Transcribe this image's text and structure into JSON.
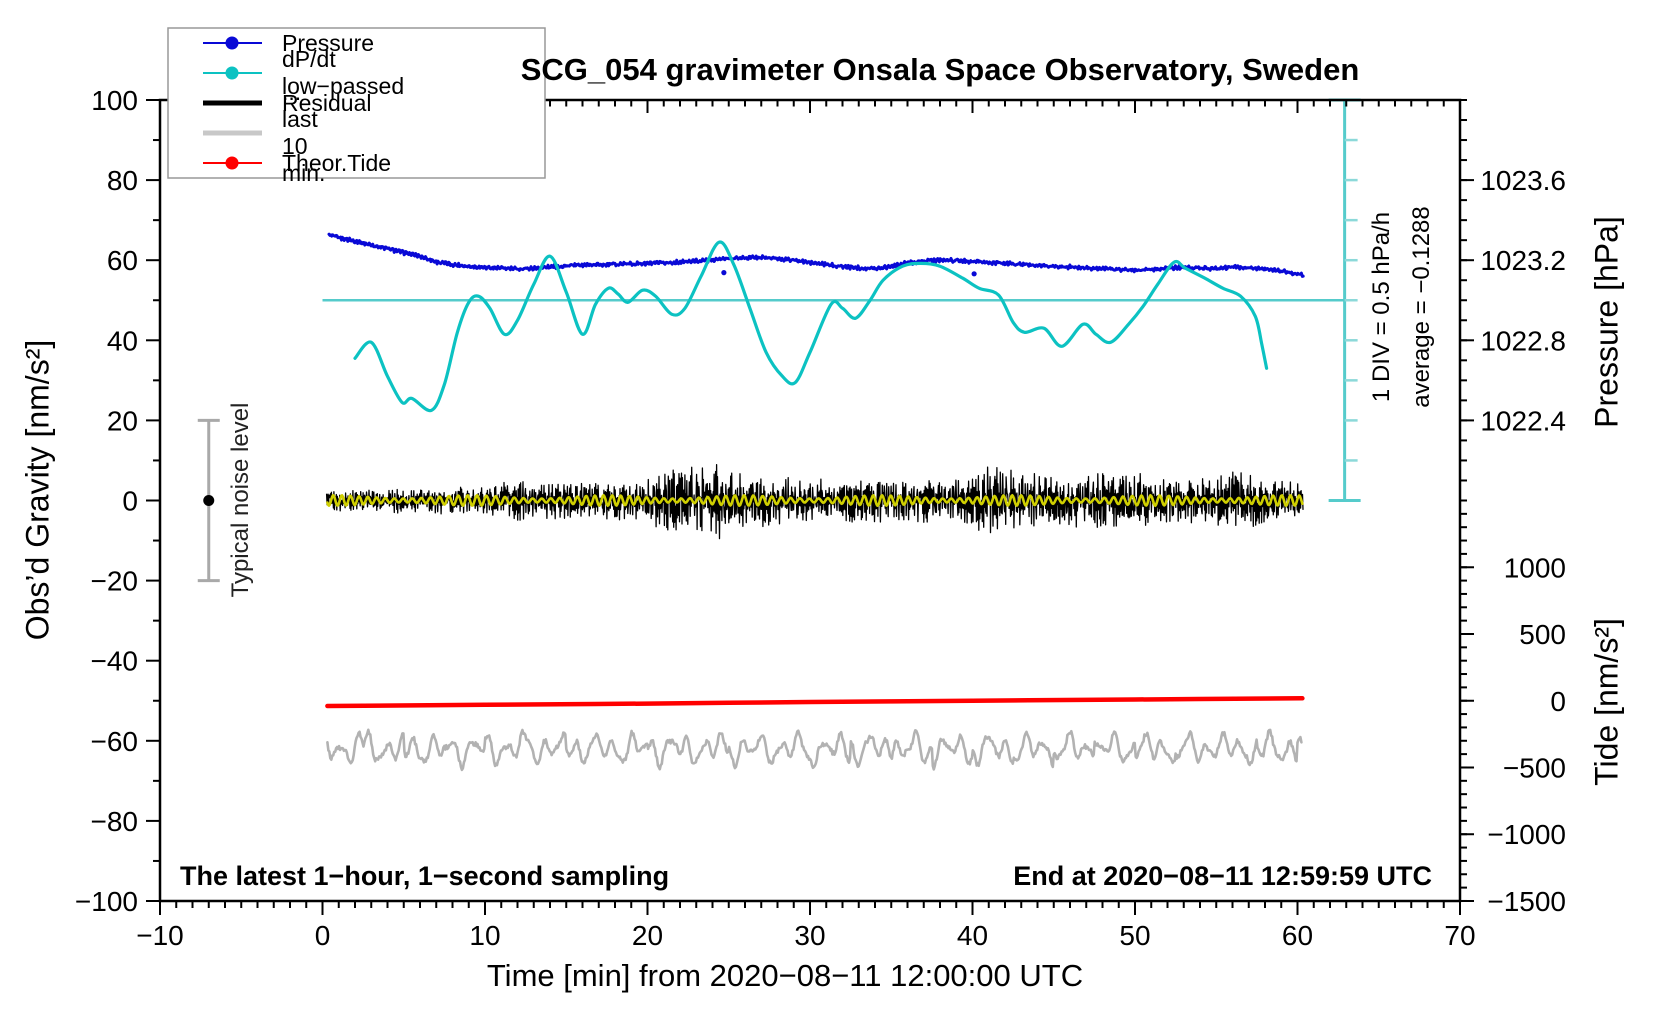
{
  "title": "SCG_054 gravimeter Onsala Space Observatory, Sweden",
  "legend": {
    "items": [
      {
        "label": "Pressure",
        "color": "#0909d6",
        "style": "thin-line-with-dot"
      },
      {
        "label": "dP/dt low−passed",
        "color": "#0cc2c2",
        "style": "thin-line-with-dot"
      },
      {
        "label": "Residual",
        "color": "#000000",
        "style": "thick-line"
      },
      {
        "label": "... last 10 min.",
        "color": "#c8c8c8",
        "style": "thick-line"
      },
      {
        "label": "Theor.Tide",
        "color": "#ff0000",
        "style": "thin-line-with-dot"
      }
    ]
  },
  "axes": {
    "x": {
      "label": "Time [min] from 2020−08−11 12:00:00 UTC",
      "min": -10,
      "max": 70,
      "major_tick_values": [
        -10,
        0,
        10,
        20,
        30,
        40,
        50,
        60,
        70
      ],
      "minor_step": 1
    },
    "y_left": {
      "label": "Obs’d Gravity [nm/s²]",
      "min": -100,
      "max": 100,
      "major_tick_values": [
        100,
        80,
        60,
        40,
        20,
        0,
        -20,
        -40,
        -60,
        -80,
        -100
      ],
      "minor_step": 10
    },
    "y_right_pressure": {
      "label": "Pressure [hPa]",
      "ticks": [
        {
          "label": "1023.6",
          "g": 80
        },
        {
          "label": "1023.2",
          "g": 60
        },
        {
          "label": "1022.8",
          "g": 40
        },
        {
          "label": "1022.4",
          "g": 20
        }
      ],
      "minor_step_g": 5,
      "mapping": "hPa = 1022.0 + 0.02 × left-axis value"
    },
    "y_right_tide": {
      "label": "Tide [nm/s²]",
      "ticks": [
        {
          "label": "1000",
          "g": -16.67
        },
        {
          "label": "500",
          "g": -33.33
        },
        {
          "label": "0",
          "g": -50
        },
        {
          "label": "−500",
          "g": -66.67
        },
        {
          "label": "−1000",
          "g": -83.33
        },
        {
          "label": "−1500",
          "g": -100
        }
      ],
      "minor_step_g": 3.333,
      "mapping": "tide nm/s² = 30 × (left-axis value + 50)"
    }
  },
  "annotations": {
    "scalebar_caption": "1 DIV = 0.5 hPa/h",
    "average_caption": "average = −0.1288",
    "noise_caption": "Typical noise level",
    "bottom_left": "The latest 1−hour, 1−second sampling",
    "bottom_right": "End at 2020−08−11 12:59:59 UTC"
  },
  "chart_data": {
    "type": "line",
    "title": "SCG_054 gravimeter Onsala Space Observatory, Sweden",
    "xlabel": "Time [min] from 2020−08−11 12:00:00 UTC",
    "ylabel": "Obs’d Gravity [nm/s²]",
    "xlim": [
      -10,
      70
    ],
    "ylim": [
      -100,
      100
    ],
    "grid": false,
    "legend_position": "top-left",
    "series": [
      {
        "name": "Pressure",
        "color": "#0909d6",
        "axis": "right-pressure",
        "unit_note": "hPa = 1022.0 + 0.02 × g",
        "points_t_g": [
          [
            0.4,
            66.3
          ],
          [
            1,
            65.6
          ],
          [
            2,
            64.8
          ],
          [
            3,
            63.8
          ],
          [
            4,
            62.9
          ],
          [
            5,
            61.9
          ],
          [
            6,
            61.0
          ],
          [
            7,
            59.6
          ],
          [
            8,
            58.9
          ],
          [
            9,
            58.5
          ],
          [
            10,
            58.2
          ],
          [
            11,
            58.0
          ],
          [
            12,
            57.8
          ],
          [
            13,
            58.0
          ],
          [
            14,
            58.3
          ],
          [
            15,
            58.6
          ],
          [
            16,
            58.8
          ],
          [
            17,
            58.9
          ],
          [
            18,
            59.0
          ],
          [
            19,
            59.1
          ],
          [
            20,
            59.2
          ],
          [
            21,
            59.3
          ],
          [
            22,
            59.5
          ],
          [
            23,
            59.8
          ],
          [
            24,
            60.1
          ],
          [
            25,
            60.4
          ],
          [
            26,
            60.6
          ],
          [
            27,
            60.7
          ],
          [
            28,
            60.4
          ],
          [
            29,
            60.0
          ],
          [
            30,
            59.4
          ],
          [
            31,
            58.9
          ],
          [
            32,
            58.4
          ],
          [
            33,
            58.1
          ],
          [
            34,
            57.9
          ],
          [
            35,
            58.5
          ],
          [
            36,
            59.3
          ],
          [
            37,
            59.8
          ],
          [
            38,
            60.1
          ],
          [
            39,
            59.9
          ],
          [
            40,
            59.7
          ],
          [
            41,
            59.4
          ],
          [
            42,
            59.2
          ],
          [
            43,
            58.9
          ],
          [
            44,
            58.7
          ],
          [
            45,
            58.5
          ],
          [
            46,
            58.3
          ],
          [
            47,
            58.1
          ],
          [
            48,
            57.9
          ],
          [
            49,
            57.7
          ],
          [
            50,
            57.6
          ],
          [
            51,
            57.7
          ],
          [
            52,
            58.0
          ],
          [
            53,
            58.2
          ],
          [
            54,
            58.1
          ],
          [
            55,
            57.9
          ],
          [
            56,
            58.3
          ],
          [
            57,
            58.1
          ],
          [
            58,
            57.8
          ],
          [
            59,
            57.3
          ],
          [
            60,
            56.6
          ],
          [
            60.4,
            56.2
          ]
        ],
        "outlier_dots_t_g": [
          [
            24.7,
            56.9
          ],
          [
            40.1,
            56.6
          ]
        ]
      },
      {
        "name": "dP/dt low−passed",
        "color": "#0cc2c2",
        "zero_reference_g": 50,
        "unit_note": "hPa/h = (g − 50)/20 ; 1 DIV (10 left-axis units) = 0.5 hPa/h",
        "points_t_g": [
          [
            2,
            35.5
          ],
          [
            3,
            39.5
          ],
          [
            4,
            31
          ],
          [
            4.9,
            24.5
          ],
          [
            5.5,
            25.5
          ],
          [
            6.7,
            22.5
          ],
          [
            7.5,
            29
          ],
          [
            8.3,
            42
          ],
          [
            9,
            49.5
          ],
          [
            9.6,
            51
          ],
          [
            10.3,
            48
          ],
          [
            11.2,
            41.5
          ],
          [
            12,
            45
          ],
          [
            13,
            54
          ],
          [
            14,
            61
          ],
          [
            15,
            52
          ],
          [
            16,
            41.5
          ],
          [
            16.8,
            49
          ],
          [
            17.6,
            53
          ],
          [
            18.2,
            51.5
          ],
          [
            18.8,
            49.5
          ],
          [
            19.7,
            52.5
          ],
          [
            20.5,
            51
          ],
          [
            21.5,
            46.5
          ],
          [
            22.3,
            48
          ],
          [
            23.3,
            56
          ],
          [
            24.4,
            64.5
          ],
          [
            25.3,
            59
          ],
          [
            26.3,
            48
          ],
          [
            27.3,
            37
          ],
          [
            28.3,
            31
          ],
          [
            29.1,
            29.5
          ],
          [
            30,
            37
          ],
          [
            31.3,
            49
          ],
          [
            32,
            48
          ],
          [
            32.8,
            45.5
          ],
          [
            33.7,
            50
          ],
          [
            34.5,
            55
          ],
          [
            35.7,
            58.5
          ],
          [
            36.8,
            59.2
          ],
          [
            38,
            58.5
          ],
          [
            39.4,
            55.5
          ],
          [
            40.4,
            53
          ],
          [
            41.6,
            51.3
          ],
          [
            42.5,
            44.5
          ],
          [
            43.2,
            42
          ],
          [
            44.4,
            43
          ],
          [
            45.5,
            38.5
          ],
          [
            46.8,
            44
          ],
          [
            47.6,
            41.5
          ],
          [
            48.5,
            39.5
          ],
          [
            49.6,
            44
          ],
          [
            50.5,
            48.5
          ],
          [
            51.4,
            54
          ],
          [
            52.4,
            59.5
          ],
          [
            53.1,
            58
          ],
          [
            54.3,
            55.5
          ],
          [
            55.4,
            53
          ],
          [
            56.5,
            51
          ],
          [
            57.4,
            46
          ],
          [
            57.8,
            39
          ],
          [
            58.1,
            33
          ]
        ]
      },
      {
        "name": "Residual",
        "color": "#000000",
        "center_g": 0,
        "envelope_t_amp": [
          [
            0,
            2.5
          ],
          [
            3,
            2.5
          ],
          [
            5,
            3
          ],
          [
            8,
            3.2
          ],
          [
            10,
            3
          ],
          [
            11,
            4
          ],
          [
            12,
            5
          ],
          [
            13,
            4.2
          ],
          [
            14,
            4.5
          ],
          [
            15,
            5
          ],
          [
            16,
            4.2
          ],
          [
            17,
            4
          ],
          [
            18,
            4.5
          ],
          [
            19,
            4.2
          ],
          [
            20,
            5
          ],
          [
            21,
            7
          ],
          [
            22,
            8
          ],
          [
            23,
            8
          ],
          [
            24,
            9
          ],
          [
            24.6,
            10
          ],
          [
            25,
            7
          ],
          [
            26,
            6
          ],
          [
            27,
            7
          ],
          [
            28,
            6
          ],
          [
            29,
            5
          ],
          [
            30,
            5
          ],
          [
            31,
            5.5
          ],
          [
            32,
            5
          ],
          [
            33,
            5.5
          ],
          [
            34,
            6
          ],
          [
            35,
            5
          ],
          [
            36,
            5
          ],
          [
            37,
            5.5
          ],
          [
            38,
            5
          ],
          [
            39,
            5.5
          ],
          [
            40,
            7
          ],
          [
            40.8,
            9
          ],
          [
            41.5,
            9
          ],
          [
            42,
            8
          ],
          [
            43,
            6
          ],
          [
            44,
            6.5
          ],
          [
            45,
            6
          ],
          [
            46,
            6.5
          ],
          [
            47,
            6
          ],
          [
            48,
            7
          ],
          [
            49,
            6
          ],
          [
            50,
            7
          ],
          [
            51,
            6
          ],
          [
            52,
            5.5
          ],
          [
            53,
            5
          ],
          [
            54,
            6
          ],
          [
            55,
            6
          ],
          [
            56,
            7
          ],
          [
            57,
            6.5
          ],
          [
            58,
            5.5
          ],
          [
            59,
            5
          ],
          [
            60.3,
            4.5
          ]
        ]
      },
      {
        "name": "Residual smoothed overlay",
        "color": "#cfcf00",
        "center_g": 0,
        "amplitude_g": 1.5,
        "t_range": [
          0.3,
          60.3
        ]
      },
      {
        "name": "... last 10 min.",
        "color": "#b2b2b2",
        "center_g": -62,
        "amplitude_g": 4.5,
        "t_range": [
          0.3,
          60.3
        ]
      },
      {
        "name": "Theor.Tide",
        "color": "#ff0000",
        "axis": "right-tide",
        "unit_note": "tide nm/s² = 30 × (g + 50)",
        "points_t_g": [
          [
            0.3,
            -51.3
          ],
          [
            10,
            -51.0
          ],
          [
            20,
            -50.7
          ],
          [
            30,
            -50.3
          ],
          [
            40,
            -50.0
          ],
          [
            50,
            -49.7
          ],
          [
            60.3,
            -49.4
          ]
        ]
      }
    ],
    "reference_marks": {
      "dpdt_zero_line": {
        "g": 50,
        "t_range": [
          0,
          62.9
        ],
        "color": "#55cbcb"
      },
      "dpdt_scalebar": {
        "t": 62.9,
        "g_range": [
          0,
          100
        ],
        "divisions": 10,
        "color": "#55cbcb"
      },
      "noise_bar": {
        "t": -7,
        "g_range": [
          -20,
          20
        ],
        "dot_g": 0,
        "color": "#a9a9a9"
      }
    }
  }
}
